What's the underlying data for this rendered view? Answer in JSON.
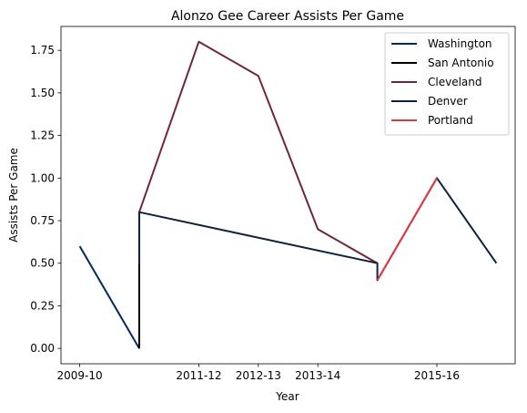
{
  "chart_data": {
    "type": "line",
    "title": "Alonzo Gee Career Assists Per Game",
    "xlabel": "Year",
    "ylabel": "Assists Per Game",
    "x_ticks": [
      "2009-10",
      "2011-12",
      "2012-13",
      "2013-14",
      "2015-16"
    ],
    "y_ticks": [
      "0.00",
      "0.25",
      "0.50",
      "0.75",
      "1.00",
      "1.25",
      "1.50",
      "1.75"
    ],
    "ylim": [
      -0.09,
      1.89
    ],
    "grid": false,
    "legend_position": "top-right",
    "series": [
      {
        "name": "Washington",
        "color": "#002b5c",
        "points": [
          [
            "2009-10",
            0.6
          ],
          [
            "2010-11",
            0.0
          ]
        ]
      },
      {
        "name": "San Antonio",
        "color": "#000000",
        "points": [
          [
            "2010-11",
            0.0
          ],
          [
            "2010-11",
            0.5
          ]
        ]
      },
      {
        "name": "Cleveland",
        "color": "#6f263d",
        "points": [
          [
            "2010-11",
            0.8
          ],
          [
            "2011-12",
            1.8
          ],
          [
            "2012-13",
            1.6
          ],
          [
            "2013-14",
            0.7
          ],
          [
            "2014-15",
            0.5
          ]
        ]
      },
      {
        "name": "Denver",
        "color": "#0e2240",
        "points": [
          [
            "2010-11",
            0.5
          ],
          [
            "2010-11",
            0.8
          ],
          [
            "2014-15",
            0.5
          ],
          [
            "2014-15",
            0.4
          ],
          [
            "2015-16",
            1.0
          ],
          [
            "2016-17",
            0.5
          ]
        ]
      },
      {
        "name": "Portland",
        "color": "#e03a3e",
        "points": [
          [
            "2014-15",
            0.4
          ],
          [
            "2015-16",
            1.0
          ]
        ]
      }
    ]
  }
}
